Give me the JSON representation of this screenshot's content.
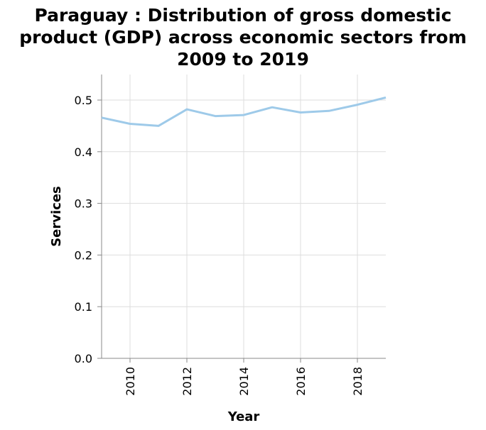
{
  "chart_data": {
    "type": "line",
    "title_lines": [
      "Paraguay : Distribution of gross domestic",
      "product (GDP) across economic sectors from",
      "2009 to 2019"
    ],
    "xlabel": "Year",
    "ylabel": "Services",
    "x": [
      2009,
      2010,
      2011,
      2012,
      2013,
      2014,
      2015,
      2016,
      2017,
      2018,
      2019
    ],
    "series": [
      {
        "values": [
          0.466,
          0.454,
          0.45,
          0.482,
          0.469,
          0.471,
          0.486,
          0.476,
          0.479,
          0.491,
          0.505
        ],
        "color": "#9ecae9"
      }
    ],
    "xlim": [
      2009,
      2019
    ],
    "ylim": [
      0,
      0.5
    ],
    "x_ticks": [
      2010,
      2012,
      2014,
      2016,
      2018
    ],
    "x_tick_labels": [
      "2010",
      "2012",
      "2014",
      "2016",
      "2018"
    ],
    "y_ticks": [
      0,
      0.1,
      0.2,
      0.3,
      0.4,
      0.5
    ],
    "y_tick_labels": [
      "0.0",
      "0.1",
      "0.2",
      "0.3",
      "0.4",
      "0.5"
    ],
    "grid": true,
    "legend": "none"
  }
}
